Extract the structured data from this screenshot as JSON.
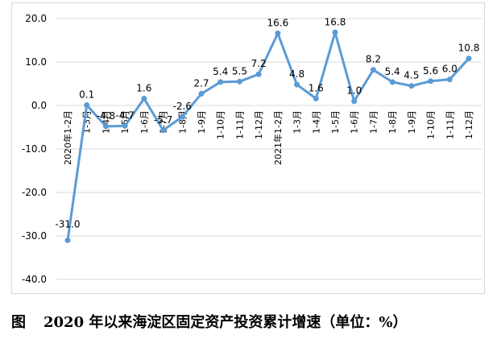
{
  "chart_data": {
    "type": "line",
    "title": "",
    "xlabel": "",
    "ylabel": "",
    "ylim": [
      -40,
      20
    ],
    "yticks": [
      "20.0",
      "10.0",
      "0.0",
      "-10.0",
      "-20.0",
      "-30.0",
      "-40.0"
    ],
    "grid": true,
    "legend": "none",
    "categories": [
      "2020年1-2月",
      "1-3月",
      "1-4月",
      "1-5月",
      "1-6月",
      "1-7月",
      "1-8月",
      "1-9月",
      "1-10月",
      "1-11月",
      "1-12月",
      "2021年1-2月",
      "1-3月",
      "1-4月",
      "1-5月",
      "1-6月",
      "1-7月",
      "1-8月",
      "1-9月",
      "1-10月",
      "1-11月",
      "1-12月"
    ],
    "series": [
      {
        "values": [
          -31.0,
          0.1,
          -4.8,
          -4.7,
          1.6,
          -5.7,
          -2.6,
          2.7,
          5.4,
          5.5,
          7.2,
          16.6,
          4.8,
          1.6,
          16.8,
          1.0,
          8.2,
          5.4,
          4.5,
          5.6,
          6.0,
          10.8
        ],
        "labels": [
          "-31.0",
          "0.1",
          "-4.8",
          "-4.7",
          "1.6",
          "-5.7",
          "-2.6",
          "2.7",
          "5.4",
          "5.5",
          "7.2",
          "16.6",
          "4.8",
          "1.6",
          "16.8",
          "1.0",
          "8.2",
          "5.4",
          "4.5",
          "5.6",
          "6.0",
          "10.8"
        ]
      }
    ],
    "colors": {
      "line": "#5b9bd5",
      "grid": "#d9d9d9",
      "text": "#595959"
    }
  },
  "caption": {
    "label": "图",
    "text": "2020 年以来海淀区固定资产投资累计增速（单位：%）"
  }
}
